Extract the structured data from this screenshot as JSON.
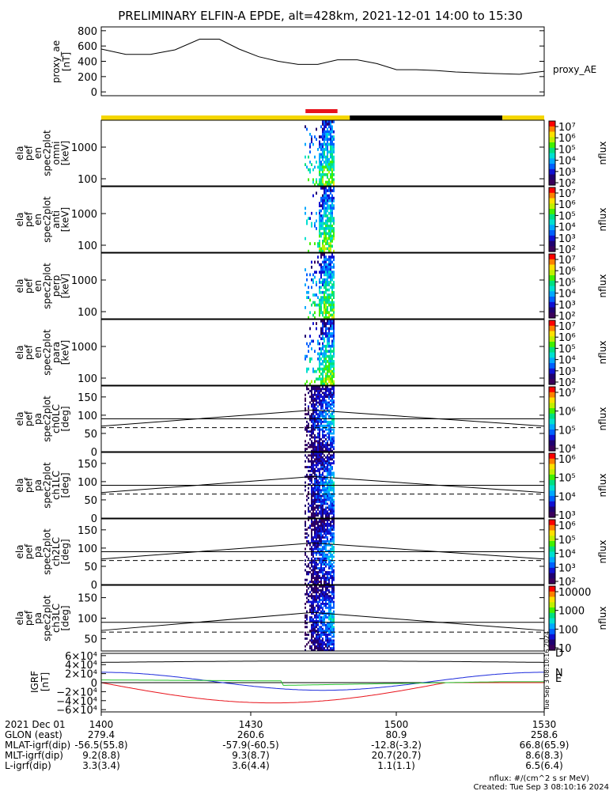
{
  "title": "PRELIMINARY ELFIN-A EPDE, alt=428km, 2021-12-01 14:00 to 15:30",
  "colors": {
    "yellow": "#f5d600",
    "black": "#000000",
    "red": "#e8141c",
    "axis": "#000000",
    "grfRed": "#e8141c",
    "grfBlue": "#1c2adc",
    "grfGreen": "#22c22a"
  },
  "chart_data": [
    {
      "type": "line",
      "name": "proxy_ae",
      "ylabel_lines": [
        "proxy_ae",
        "[nT]"
      ],
      "legend": "proxy_AE",
      "ylim": [
        -50,
        850
      ],
      "yticks": [
        0,
        200,
        400,
        600,
        800
      ],
      "xlim_min": [
        0,
        90
      ],
      "x": [
        0,
        5,
        10,
        15,
        20,
        24,
        28,
        32,
        36,
        40,
        44,
        48,
        52,
        56,
        60,
        64,
        68,
        72,
        76,
        80,
        85,
        90
      ],
      "y": [
        560,
        490,
        490,
        550,
        690,
        690,
        560,
        460,
        400,
        360,
        360,
        420,
        420,
        370,
        290,
        290,
        280,
        260,
        250,
        240,
        230,
        270
      ]
    },
    {
      "type": "bar",
      "name": "orbit-bar",
      "segments": [
        {
          "from": 0,
          "to": 50.5,
          "color": "yellow"
        },
        {
          "from": 50.5,
          "to": 81.5,
          "color": "black"
        },
        {
          "from": 81.5,
          "to": 90,
          "color": "yellow"
        }
      ],
      "science_marker": {
        "from": 41.5,
        "to": 48
      }
    },
    {
      "type": "heatmap",
      "name": "omni",
      "ylabel_lines": [
        "ela",
        "pef",
        "en",
        "spec2plot",
        "omni",
        "[keV]"
      ],
      "ytick_labels": [
        "1000",
        "100"
      ],
      "colorbar": {
        "labels": [
          "10⁷",
          "10⁶",
          "10⁵",
          "10⁴",
          "10³",
          "10²"
        ],
        "title": "nflux"
      }
    },
    {
      "type": "heatmap",
      "name": "anti",
      "ylabel_lines": [
        "ela",
        "pef",
        "en",
        "spec2plot",
        "anti",
        "[keV]"
      ],
      "ytick_labels": [
        "1000",
        "100"
      ],
      "colorbar": {
        "labels": [
          "10⁷",
          "10⁶",
          "10⁵",
          "10⁴",
          "10³",
          "10²"
        ],
        "title": "nflux"
      }
    },
    {
      "type": "heatmap",
      "name": "perp",
      "ylabel_lines": [
        "ela",
        "pef",
        "en",
        "spec2plot",
        "perp",
        "[keV]"
      ],
      "ytick_labels": [
        "1000",
        "100"
      ],
      "colorbar": {
        "labels": [
          "10⁷",
          "10⁶",
          "10⁵",
          "10⁴",
          "10³",
          "10²"
        ],
        "title": "nflux"
      }
    },
    {
      "type": "heatmap",
      "name": "para",
      "ylabel_lines": [
        "ela",
        "pef",
        "en",
        "spec2plot",
        "para",
        "[keV]"
      ],
      "ytick_labels": [
        "1000",
        "100"
      ],
      "colorbar": {
        "labels": [
          "10⁷",
          "10⁶",
          "10⁵",
          "10⁴",
          "10³",
          "10²"
        ],
        "title": "nflux"
      }
    },
    {
      "type": "heatmap",
      "name": "ch0LC",
      "ylabel_lines": [
        "ela",
        "pef",
        "pa",
        "spec2plot",
        "ch0LC",
        "[deg]"
      ],
      "ytick_labels": [
        "150",
        "100",
        "50",
        "0"
      ],
      "ylim": [
        0,
        180
      ],
      "colorbar": {
        "labels": [
          "10⁷",
          "10⁶",
          "10⁵",
          "10⁴"
        ],
        "title": "nflux"
      }
    },
    {
      "type": "heatmap",
      "name": "ch1LC",
      "ylabel_lines": [
        "ela",
        "pef",
        "pa",
        "spec2plot",
        "ch1LC",
        "[deg]"
      ],
      "ytick_labels": [
        "150",
        "100",
        "50",
        "0"
      ],
      "ylim": [
        0,
        180
      ],
      "colorbar": {
        "labels": [
          "10⁶",
          "10⁵",
          "10⁴",
          "10³"
        ],
        "title": "nflux"
      }
    },
    {
      "type": "heatmap",
      "name": "ch2LC",
      "ylabel_lines": [
        "ela",
        "pef",
        "pa",
        "spec2plot",
        "ch2LC",
        "[deg]"
      ],
      "ytick_labels": [
        "150",
        "100",
        "50",
        "0"
      ],
      "ylim": [
        0,
        180
      ],
      "colorbar": {
        "labels": [
          "10⁶",
          "10⁵",
          "10⁴",
          "10³",
          "10²"
        ],
        "title": "nflux"
      }
    },
    {
      "type": "heatmap",
      "name": "ch3LC",
      "ylabel_lines": [
        "ela",
        "pef",
        "pa",
        "spec2plot",
        "ch3LC",
        "[deg]"
      ],
      "ytick_labels": [
        "150",
        "100",
        "50"
      ],
      "ylim": [
        20,
        180
      ],
      "colorbar": {
        "labels": [
          "10000",
          "1000",
          "100",
          "10"
        ],
        "title": "nflux"
      }
    },
    {
      "type": "line",
      "name": "GRF",
      "ylabel_lines": [
        "IGRF",
        "[nT]"
      ],
      "ytick_labels": [
        "6×10⁴",
        "4×10⁴",
        "2×10⁴",
        "0",
        "−2×10⁴",
        "−4×10⁴",
        "−6×10⁴"
      ],
      "ylim": [
        -65000,
        65000
      ],
      "legend": [
        "D",
        "N",
        "E"
      ]
    }
  ],
  "footer": {
    "rows": [
      {
        "label": "2021 Dec 01",
        "values": [
          "1400",
          "1430",
          "1500",
          "1530"
        ]
      },
      {
        "label": "GLON (east)",
        "values": [
          "279.4",
          "260.6",
          "80.9",
          "258.6"
        ]
      },
      {
        "label": "MLAT-igrf(dip)",
        "values": [
          "-56.5(55.8)",
          "-57.9(-60.5)",
          "-12.8(-3.2)",
          "66.8(65.9)"
        ]
      },
      {
        "label": "MLT-igrf(dip)",
        "values": [
          "9.2(8.8)",
          "9.3(8.7)",
          "20.7(20.7)",
          "8.6(8.3)"
        ]
      },
      {
        "label": "L-igrf(dip)",
        "values": [
          "3.3(3.4)",
          "3.6(4.4)",
          "1.1(1.1)",
          "6.5(6.4)"
        ]
      }
    ],
    "units": "nflux: #/(cm^2 s sr MeV)",
    "created": "Created: Tue Sep  3 08:10:16 2024",
    "side_stamp": "Tue Sep  3 08:10:16 2024"
  }
}
